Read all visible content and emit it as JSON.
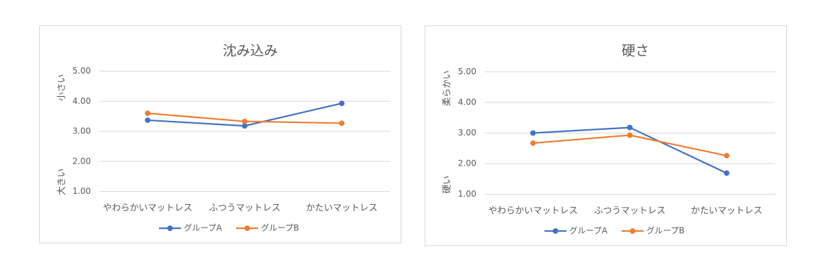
{
  "chart_data": [
    {
      "type": "line",
      "title": "沈み込み",
      "categories": [
        "やわらかいマットレス",
        "ふつうマットレス",
        "かたいマットレス"
      ],
      "series": [
        {
          "name": "グループA",
          "color": "#4472C4",
          "values": [
            3.37,
            3.18,
            3.93
          ]
        },
        {
          "name": "グループB",
          "color": "#ED7D31",
          "values": [
            3.6,
            3.33,
            3.27
          ]
        }
      ],
      "ylim": [
        1,
        5
      ],
      "yticks": [
        "1.00",
        "2.00",
        "3.00",
        "4.00",
        "5.00"
      ],
      "y_top_label": "小さい",
      "y_bottom_label": "大きい",
      "grid": true,
      "legend": "bottom"
    },
    {
      "type": "line",
      "title": "硬さ",
      "categories": [
        "やわらかいマットレス",
        "ふつうマットレス",
        "かたいマットレス"
      ],
      "series": [
        {
          "name": "グループA",
          "color": "#4472C4",
          "values": [
            3.0,
            3.18,
            1.69
          ]
        },
        {
          "name": "グループB",
          "color": "#ED7D31",
          "values": [
            2.67,
            2.93,
            2.26
          ]
        }
      ],
      "ylim": [
        1,
        5
      ],
      "yticks": [
        "1.00",
        "2.00",
        "3.00",
        "4.00",
        "5.00"
      ],
      "y_top_label": "柔らかい",
      "y_bottom_label": "硬い",
      "grid": true,
      "legend": "bottom"
    }
  ]
}
